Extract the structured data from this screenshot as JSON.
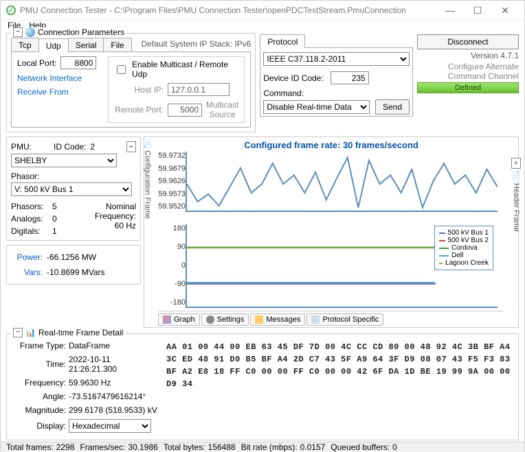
{
  "window": {
    "title": "PMU Connection Tester - C:\\Program Files\\PMU Connection Tester\\openPDCTestStream.PmuConnection",
    "min": "—",
    "max": "☐",
    "close": "✕"
  },
  "menubar": {
    "file": "File",
    "help": "Help"
  },
  "conn": {
    "legend": "Connection Parameters",
    "tabs": {
      "tcp": "Tcp",
      "udp": "Udp",
      "serial": "Serial",
      "file": "File"
    },
    "stack_label": "Default System IP Stack: IPv6",
    "local_port_label": "Local Port:",
    "local_port": "8800",
    "network_interface": "Network Interface",
    "receive_from": "Receive From",
    "multicast_label": "Enable Multicast / Remote Udp",
    "host_ip_label": "Host IP:",
    "host_ip": "127.0.0.1",
    "remote_port_label": "Remote Port:",
    "remote_port": "5000",
    "multicast_source": "Multicast\nSource"
  },
  "protocol": {
    "tab": "Protocol",
    "protocol_value": "IEEE C37.118.2-2011",
    "device_id_label": "Device ID Code:",
    "device_id": "235",
    "command_label": "Command:",
    "command_value": "Disable Real-time Data",
    "send": "Send"
  },
  "right": {
    "disconnect": "Disconnect",
    "version": "Version 4.7.1",
    "configure": "Configure Alternate\nCommand Channel",
    "defined": "Defined"
  },
  "pmu": {
    "pmu_label": "PMU:",
    "idcode_label": "ID Code:",
    "idcode": "2",
    "pmu_value": "SHELBY",
    "phasor_label": "Phasor:",
    "phasor_value": "V: 500 kV Bus 1",
    "phasors_label": "Phasors:",
    "phasors": "5",
    "analogs_label": "Analogs:",
    "analogs": "0",
    "digitals_label": "Digitals:",
    "digitals": "1",
    "nominal_label": "Nominal\nFrequency:",
    "nominal": "60 Hz",
    "power_label": "Power:",
    "power": "-66.1256 MW",
    "vars_label": "Vars:",
    "vars": "-10.8699 MVars",
    "config_frame_label": "Configuration Frame",
    "header_frame_label": "Header Frame"
  },
  "chart": {
    "title": "Configured frame rate: 30 frames/second",
    "freq_ticks": [
      "59.9732",
      "59.9679",
      "59.9626",
      "59.9573",
      "59.9520"
    ],
    "freq_line_color": "#5b8db8",
    "freq_points": [
      0.55,
      0.85,
      0.72,
      0.92,
      0.6,
      0.28,
      0.7,
      0.55,
      0.2,
      0.55,
      0.4,
      0.7,
      0.35,
      0.82,
      0.45,
      0.1,
      0.95,
      0.15,
      0.55,
      0.4,
      0.7,
      0.3,
      0.95,
      0.5,
      0.2,
      0.55,
      0.4,
      0.7,
      0.3,
      0.6
    ],
    "phase_ticks": [
      "180",
      "90",
      "0",
      "-90",
      "-180"
    ],
    "legend": [
      {
        "label": "500 kV Bus 1",
        "color": "#4a72c8"
      },
      {
        "label": "500 kV Bus 2",
        "color": "#c84a4a"
      },
      {
        "label": "Cordova",
        "color": "#2e9e2e"
      },
      {
        "label": "Dell",
        "color": "#3aa8d8"
      },
      {
        "label": "Lagoon Creek",
        "color": "#7aa83a"
      }
    ],
    "phase_lines": [
      {
        "color": "#2e9e2e",
        "y": 0.28
      },
      {
        "color": "#7aa83a",
        "y": 0.285
      },
      {
        "color": "#4a72c8",
        "y": 0.71
      },
      {
        "color": "#c84a4a",
        "y": 0.725
      },
      {
        "color": "#3aa8d8",
        "y": 0.72
      }
    ],
    "bottom_tabs": {
      "graph": "Graph",
      "settings": "Settings",
      "messages": "Messages",
      "protocol": "Protocol Specific"
    }
  },
  "realtime": {
    "legend": "Real-time Frame Detail",
    "frame_type_label": "Frame Type:",
    "frame_type": "DataFrame",
    "time_label": "Time:",
    "time": "2022-10-11 21:26:21.300",
    "frequency_label": "Frequency:",
    "frequency": "59.9630 Hz",
    "angle_label": "Angle:",
    "angle": "-73.5167479616214°",
    "magnitude_label": "Magnitude:",
    "magnitude": "299.6178 (518.9533) kV",
    "display_label": "Display:",
    "display_value": "Hexadecimal",
    "hex": "AA 01 00 44 00 EB 63 45 DF 7D 00 4C CC CD 80 00 48 92 4C 3B BF A4\n3C ED 48 91 D0 B5 BF A4 2D C7 43 5F A9 64 3F D9 08 07 43 F5 F3 83\nBF A2 E8 18 FF C0 00 00 FF C0 00 00 42 6F DA 1D BE 19 99 9A 00 00\nD9 34"
  },
  "status": {
    "total_frames_label": "Total frames:",
    "total_frames": "2298",
    "frames_sec_label": "Frames/sec:",
    "frames_sec": "30.1986",
    "total_bytes_label": "Total bytes:",
    "total_bytes": "156488",
    "bit_rate_label": "Bit rate (mbps):",
    "bit_rate": "0.0157",
    "queued_label": "Queued buffers:",
    "queued": "0"
  }
}
